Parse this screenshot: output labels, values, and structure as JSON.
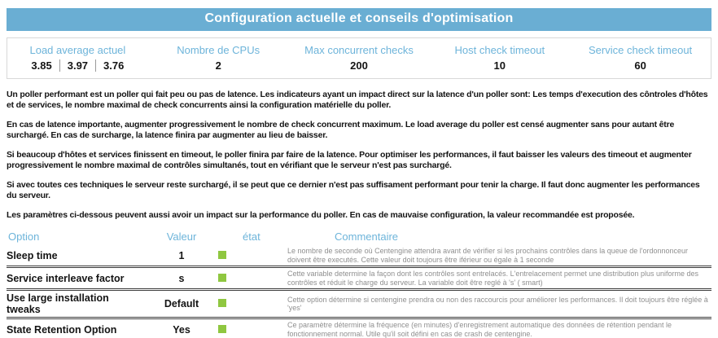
{
  "title": "Configuration actuelle et conseils d'optimisation",
  "colors": {
    "header_bg": "#6aaed3",
    "accent_blue": "#6db4da",
    "status_ok_green": "#8fc740"
  },
  "stats": [
    {
      "label": "Load average actuel",
      "values": [
        "3.85",
        "3.97",
        "3.76"
      ]
    },
    {
      "label": "Nombre de CPUs",
      "value": "2"
    },
    {
      "label": "Max concurrent checks",
      "value": "200"
    },
    {
      "label": "Host check timeout",
      "value": "10"
    },
    {
      "label": "Service check timeout",
      "value": "60"
    }
  ],
  "paragraphs": [
    "Un poller performant est un poller qui fait peu ou pas de latence. Les indicateurs ayant un impact direct sur la latence d'un poller sont: Les temps d'execution des côntroles d'hôtes et de services, le nombre maximal de check concurrents ainsi la configuration matérielle du poller.",
    "En cas de latence importante, augmenter progressivement le nombre de check concurrent maximum. Le load average du poller est censé augmenter sans pour autant être surchargé. En cas de surcharge, la latence finira par augmenter au lieu de baisser.",
    "Si beaucoup d'hôtes et services finissent en timeout, le poller finira par faire de la latence. Pour optimiser les performances, il faut baisser les valeurs des timeout et augmenter progressivement le nombre maximal de contrôles simultanés, tout en vérifiant que le serveur n'est pas surchargé.",
    "Si avec toutes ces techniques le serveur reste surchargé, il se peut que ce dernier n'est pas suffisament performant pour tenir la charge. Il faut donc augmenter les performances du serveur.",
    "Les paramètres ci-dessous peuvent aussi avoir un impact sur la performance du poller. En cas de mauvaise configuration, la valeur recommandée est proposée."
  ],
  "options_table": {
    "headers": {
      "option": "Option",
      "value": "Valeur",
      "state": "état",
      "comment": "Commentaire"
    },
    "rows": [
      {
        "option": "Sleep time",
        "value": "1",
        "state": "ok",
        "comment": "Le nombre de seconde où Centengine attendra avant de vérifier si les prochains contrôles dans la queue de l'ordonnonceur doivent être executés. Cette valeur doit toujours être iférieur ou égale à 1 seconde"
      },
      {
        "option": "Service interleave factor",
        "value": "s",
        "state": "ok",
        "comment": "Cette variable determine la façon dont les contrôles sont entrelacés. L'entrelacement permet une distribution plus uniforme des contrôles et réduit le charge du serveur. La variable doit être reglé à 's' ( smart)"
      },
      {
        "option": "Use large installation tweaks",
        "value": "Default",
        "state": "ok",
        "comment": "Cette option détermine si centengine prendra ou non des raccourcis pour améliorer les performances. Il doit toujours être réglée à 'yes'"
      },
      {
        "option": "State Retention Option",
        "value": "Yes",
        "state": "ok",
        "comment": "Ce paramètre détermine la fréquence (en minutes) d'enregistrement automatique des données de rétention pendant le fonctionnement normal. Utile qu'il soit défini en cas de crash de centengine."
      }
    ]
  }
}
